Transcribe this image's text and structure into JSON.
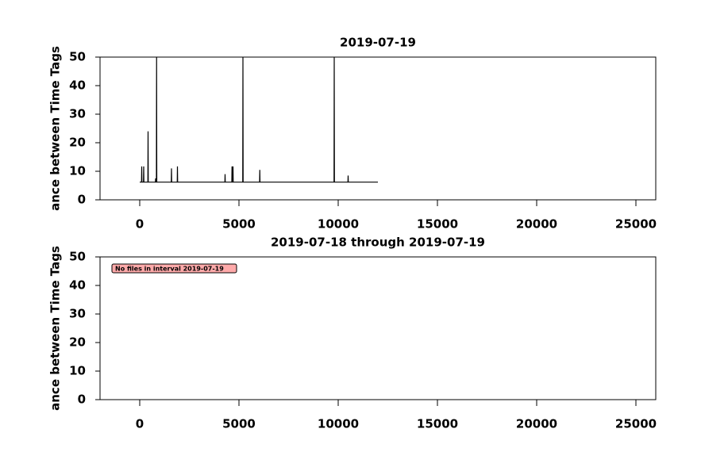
{
  "chart_data": [
    {
      "type": "line",
      "title": "2019-07-19",
      "ylabel": "ance between Time Tags",
      "x": [
        0,
        90,
        100,
        110,
        190,
        200,
        210,
        410,
        420,
        430,
        790,
        800,
        810,
        840,
        850,
        860,
        1590,
        1600,
        1610,
        1890,
        1900,
        1910,
        4290,
        4300,
        4310,
        4640,
        4650,
        4660,
        4690,
        4700,
        4710,
        5190,
        5200,
        5210,
        6040,
        6050,
        6060,
        9790,
        9800,
        9810,
        10490,
        10500,
        10510,
        12000
      ],
      "values": [
        6.2,
        6.2,
        11.7,
        6.2,
        6.2,
        11.7,
        6.2,
        6.2,
        24,
        6.2,
        6.2,
        7.5,
        6.2,
        6.2,
        50,
        6.2,
        6.2,
        11,
        6.2,
        6.2,
        11.7,
        6.2,
        6.2,
        9,
        6.2,
        6.2,
        11.7,
        6.2,
        6.2,
        11.7,
        6.2,
        6.2,
        50,
        6.2,
        6.2,
        10.5,
        6.2,
        6.2,
        50,
        6.2,
        6.2,
        8.5,
        6.2,
        6.2
      ],
      "color": "#000000",
      "xlim": [
        -2000,
        26000
      ],
      "xticks": [
        0,
        5000,
        10000,
        15000,
        20000,
        25000
      ],
      "ylim": [
        0,
        50
      ],
      "yticks": [
        0,
        10,
        20,
        30,
        40,
        50
      ]
    },
    {
      "type": "line",
      "title": "2019-07-18 through 2019-07-19",
      "ylabel": "ance between Time Tags",
      "x": [],
      "values": [],
      "color": "#000000",
      "annotation": "No files in interval 2019-07-19",
      "xlim": [
        -2000,
        26000
      ],
      "xticks": [
        0,
        5000,
        10000,
        15000,
        20000,
        25000
      ],
      "ylim": [
        0,
        50
      ],
      "yticks": [
        0,
        10,
        20,
        30,
        40,
        50
      ]
    }
  ]
}
